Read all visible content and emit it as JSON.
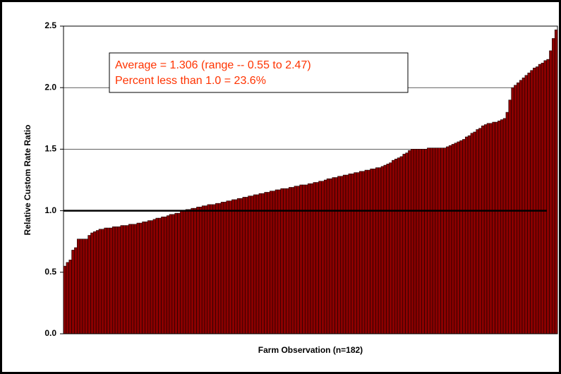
{
  "chart_data": {
    "type": "bar",
    "ylabel": "Relative Custom Rate Ratio",
    "xlabel": "Farm Observation (n=182)",
    "annotations": [
      "Average = 1.306 (range -- 0.55 to 2.47)",
      "Percent less than 1.0 = 23.6%"
    ],
    "color": "#8b0000",
    "reference_line": 1.0,
    "ylim": [
      0,
      2.5
    ],
    "yticks": [
      {
        "value": 0,
        "label": "0.0"
      },
      0.5,
      {
        "value": 1,
        "label": "1.0"
      },
      1.5,
      {
        "value": 2,
        "label": "2.0"
      },
      2.5
    ],
    "grid": true,
    "values": [
      0.55,
      0.58,
      0.6,
      0.68,
      0.7,
      0.77,
      0.77,
      0.77,
      0.77,
      0.8,
      0.82,
      0.83,
      0.84,
      0.85,
      0.85,
      0.86,
      0.86,
      0.86,
      0.87,
      0.87,
      0.87,
      0.88,
      0.88,
      0.88,
      0.89,
      0.89,
      0.89,
      0.9,
      0.9,
      0.91,
      0.91,
      0.92,
      0.92,
      0.93,
      0.94,
      0.94,
      0.95,
      0.95,
      0.96,
      0.97,
      0.97,
      0.98,
      0.98,
      1.0,
      1.0,
      1.01,
      1.01,
      1.02,
      1.02,
      1.03,
      1.03,
      1.04,
      1.04,
      1.05,
      1.05,
      1.05,
      1.06,
      1.06,
      1.07,
      1.07,
      1.08,
      1.08,
      1.09,
      1.09,
      1.1,
      1.1,
      1.11,
      1.11,
      1.12,
      1.12,
      1.13,
      1.13,
      1.14,
      1.14,
      1.15,
      1.15,
      1.16,
      1.16,
      1.17,
      1.17,
      1.18,
      1.18,
      1.18,
      1.19,
      1.19,
      1.2,
      1.2,
      1.21,
      1.21,
      1.21,
      1.22,
      1.22,
      1.23,
      1.23,
      1.24,
      1.24,
      1.25,
      1.26,
      1.26,
      1.27,
      1.27,
      1.28,
      1.28,
      1.29,
      1.29,
      1.3,
      1.3,
      1.31,
      1.31,
      1.32,
      1.32,
      1.33,
      1.33,
      1.34,
      1.34,
      1.35,
      1.35,
      1.36,
      1.37,
      1.38,
      1.39,
      1.41,
      1.42,
      1.43,
      1.44,
      1.46,
      1.47,
      1.49,
      1.5,
      1.5,
      1.5,
      1.5,
      1.5,
      1.5,
      1.51,
      1.51,
      1.51,
      1.51,
      1.51,
      1.51,
      1.51,
      1.52,
      1.53,
      1.54,
      1.55,
      1.56,
      1.57,
      1.58,
      1.6,
      1.61,
      1.63,
      1.64,
      1.66,
      1.67,
      1.69,
      1.7,
      1.71,
      1.71,
      1.72,
      1.72,
      1.73,
      1.74,
      1.75,
      1.8,
      1.9,
      2.0,
      2.02,
      2.04,
      2.06,
      2.08,
      2.1,
      2.12,
      2.14,
      2.16,
      2.17,
      2.19,
      2.2,
      2.22,
      2.23,
      2.3,
      2.4,
      2.47
    ]
  }
}
